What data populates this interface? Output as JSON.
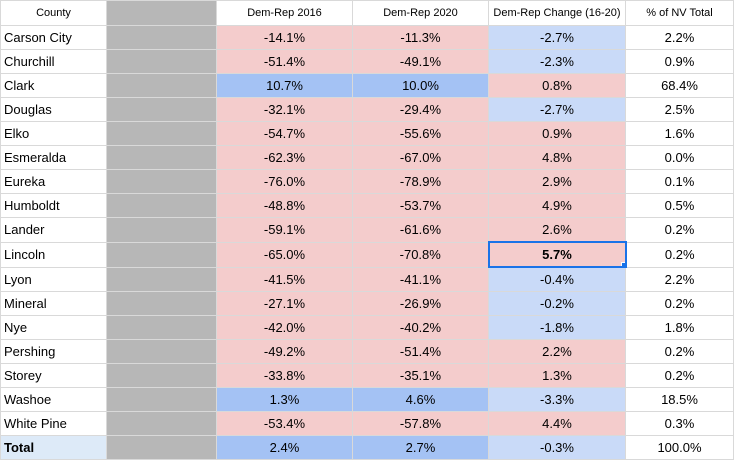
{
  "headers": [
    "County",
    "",
    "Dem-Rep 2016",
    "Dem-Rep 2020",
    "Dem-Rep Change (16-20)",
    "% of NV Total"
  ],
  "colors": {
    "pink": "#f4cccc",
    "blue": "#a4c2f4",
    "light_blue": "#c9daf8",
    "gray": "#b7b7b7",
    "selection": "#1a73e8"
  },
  "rows": [
    {
      "county": "Carson City",
      "d2016": "-14.1%",
      "d2020": "-11.3%",
      "change": "-2.7%",
      "share": "2.2%"
    },
    {
      "county": "Churchill",
      "d2016": "-51.4%",
      "d2020": "-49.1%",
      "change": "-2.3%",
      "share": "0.9%"
    },
    {
      "county": "Clark",
      "d2016": "10.7%",
      "d2020": "10.0%",
      "change": "0.8%",
      "share": "68.4%"
    },
    {
      "county": "Douglas",
      "d2016": "-32.1%",
      "d2020": "-29.4%",
      "change": "-2.7%",
      "share": "2.5%"
    },
    {
      "county": "Elko",
      "d2016": "-54.7%",
      "d2020": "-55.6%",
      "change": "0.9%",
      "share": "1.6%"
    },
    {
      "county": "Esmeralda",
      "d2016": "-62.3%",
      "d2020": "-67.0%",
      "change": "4.8%",
      "share": "0.0%"
    },
    {
      "county": "Eureka",
      "d2016": "-76.0%",
      "d2020": "-78.9%",
      "change": "2.9%",
      "share": "0.1%"
    },
    {
      "county": "Humboldt",
      "d2016": "-48.8%",
      "d2020": "-53.7%",
      "change": "4.9%",
      "share": "0.5%"
    },
    {
      "county": "Lander",
      "d2016": "-59.1%",
      "d2020": "-61.6%",
      "change": "2.6%",
      "share": "0.2%"
    },
    {
      "county": "Lincoln",
      "d2016": "-65.0%",
      "d2020": "-70.8%",
      "change": "5.7%",
      "share": "0.2%"
    },
    {
      "county": "Lyon",
      "d2016": "-41.5%",
      "d2020": "-41.1%",
      "change": "-0.4%",
      "share": "2.2%"
    },
    {
      "county": "Mineral",
      "d2016": "-27.1%",
      "d2020": "-26.9%",
      "change": "-0.2%",
      "share": "0.2%"
    },
    {
      "county": "Nye",
      "d2016": "-42.0%",
      "d2020": "-40.2%",
      "change": "-1.8%",
      "share": "1.8%"
    },
    {
      "county": "Pershing",
      "d2016": "-49.2%",
      "d2020": "-51.4%",
      "change": "2.2%",
      "share": "0.2%"
    },
    {
      "county": "Storey",
      "d2016": "-33.8%",
      "d2020": "-35.1%",
      "change": "1.3%",
      "share": "0.2%"
    },
    {
      "county": "Washoe",
      "d2016": "1.3%",
      "d2020": "4.6%",
      "change": "-3.3%",
      "share": "18.5%"
    },
    {
      "county": "White Pine",
      "d2016": "-53.4%",
      "d2020": "-57.8%",
      "change": "4.4%",
      "share": "0.3%"
    }
  ],
  "total": {
    "county": "Total",
    "d2016": "2.4%",
    "d2020": "2.7%",
    "change": "-0.3%",
    "share": "100.0%"
  }
}
